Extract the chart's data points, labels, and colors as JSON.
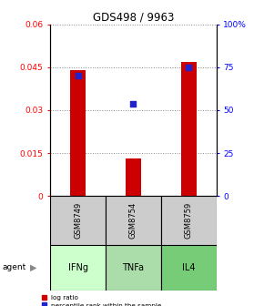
{
  "title": "GDS498 / 9963",
  "samples": [
    "GSM8749",
    "GSM8754",
    "GSM8759"
  ],
  "agents": [
    "IFNg",
    "TNFa",
    "IL4"
  ],
  "log_ratio": [
    0.044,
    0.013,
    0.047
  ],
  "percentile_rank": [
    0.7,
    0.535,
    0.75
  ],
  "bar_color": "#cc0000",
  "dot_color": "#2222cc",
  "ylim_left": [
    0,
    0.06
  ],
  "ylim_right": [
    0,
    1.0
  ],
  "yticks_left": [
    0,
    0.015,
    0.03,
    0.045,
    0.06
  ],
  "ytick_labels_left": [
    "0",
    "0.015",
    "0.03",
    "0.045",
    "0.06"
  ],
  "yticks_right": [
    0,
    0.25,
    0.5,
    0.75,
    1.0
  ],
  "ytick_labels_right": [
    "0",
    "25",
    "50",
    "75",
    "100%"
  ],
  "agent_colors": [
    "#ccffcc",
    "#aaddaa",
    "#77cc77"
  ],
  "sample_box_color": "#cccccc",
  "grid_color": "#888888",
  "bar_width": 0.28,
  "background_color": "#ffffff"
}
